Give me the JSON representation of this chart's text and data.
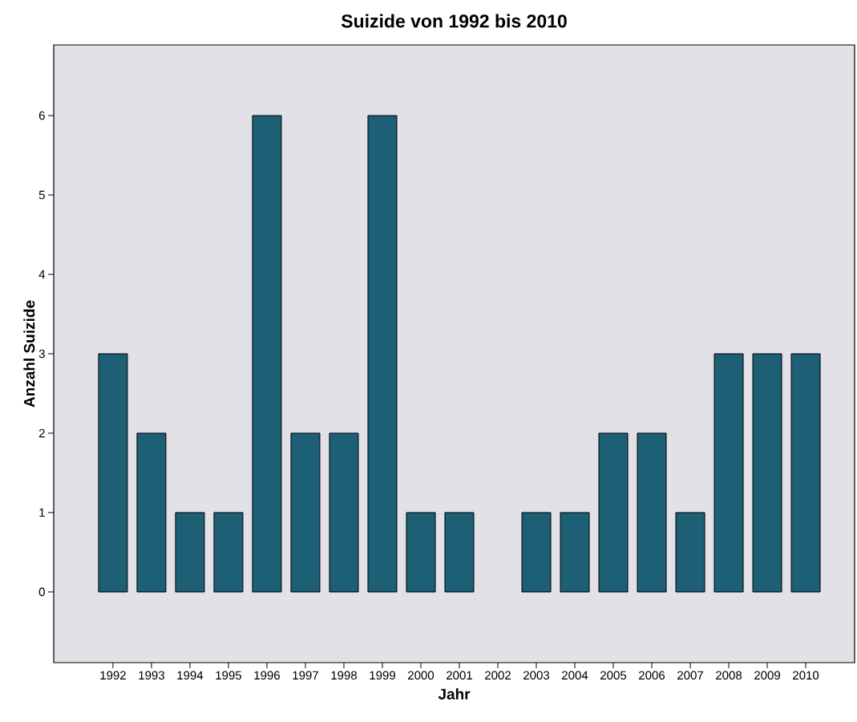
{
  "chart_data": {
    "type": "bar",
    "title": "Suizide von 1992 bis 2010",
    "xlabel": "Jahr",
    "ylabel": "Anzahl Suizide",
    "categories": [
      "1992",
      "1993",
      "1994",
      "1995",
      "1996",
      "1997",
      "1998",
      "1999",
      "2000",
      "2001",
      "2002",
      "2003",
      "2004",
      "2005",
      "2006",
      "2007",
      "2008",
      "2009",
      "2010"
    ],
    "values": [
      3,
      2,
      1,
      1,
      6,
      2,
      2,
      6,
      1,
      1,
      0,
      1,
      1,
      2,
      2,
      1,
      3,
      3,
      3
    ],
    "color": "#1d5f75",
    "ylim": [
      -0.89,
      6.89
    ],
    "yticks": [
      0,
      1,
      2,
      3,
      4,
      5,
      6
    ]
  }
}
